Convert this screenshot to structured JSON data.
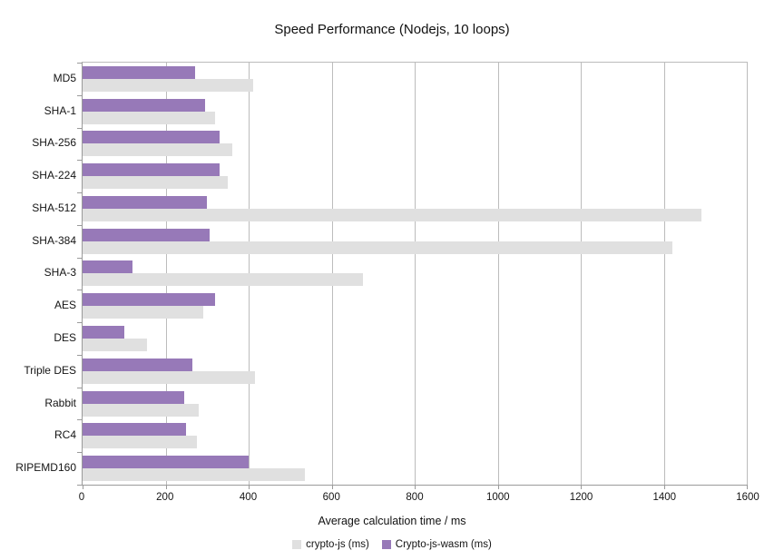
{
  "chart_data": {
    "type": "bar",
    "orientation": "horizontal",
    "title": "Speed Performance (Nodejs, 10 loops)",
    "xlabel": "Average calculation time / ms",
    "ylabel": "",
    "xlim": [
      0,
      1600
    ],
    "x_ticks": [
      0,
      200,
      400,
      600,
      800,
      1000,
      1200,
      1400,
      1600
    ],
    "grid": true,
    "legend_position": "bottom",
    "categories": [
      "MD5",
      "SHA-1",
      "SHA-256",
      "SHA-224",
      "SHA-512",
      "SHA-384",
      "SHA-3",
      "AES",
      "DES",
      "Triple DES",
      "Rabbit",
      "RC4",
      "RIPEMD160"
    ],
    "series": [
      {
        "name": "crypto-js (ms)",
        "color": "#e0e0e0",
        "values": [
          410,
          320,
          360,
          350,
          1490,
          1420,
          675,
          290,
          155,
          415,
          280,
          275,
          535
        ]
      },
      {
        "name": "Crypto-js-wasm (ms)",
        "color": "#9779b8",
        "values": [
          270,
          295,
          330,
          330,
          300,
          305,
          120,
          320,
          100,
          265,
          245,
          250,
          400
        ]
      }
    ]
  },
  "colors": {
    "background": "#ffffff",
    "gridline": "#bcbcbc",
    "axis": "#9a9a9a",
    "text": "#141414"
  }
}
